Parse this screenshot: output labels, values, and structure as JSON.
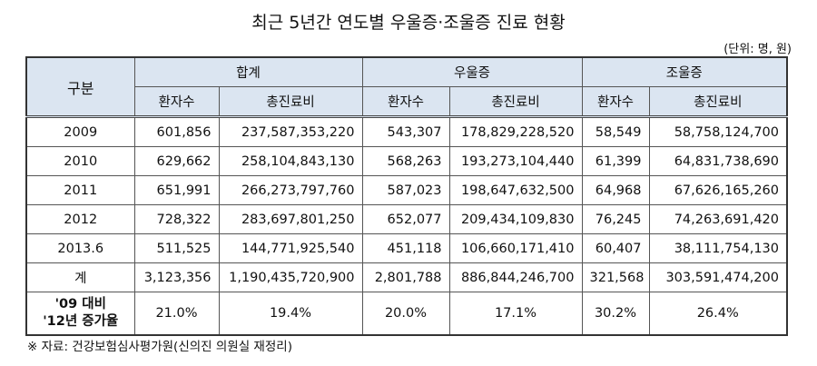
{
  "title": "최근 5년간 연도별 우울증·조울증 진료 현황",
  "unit": "(단위: 명, 원)",
  "table": {
    "row_header": "구분",
    "groups": [
      "합계",
      "우울증",
      "조울증"
    ],
    "subheaders": [
      "환자수",
      "총진료비",
      "환자수",
      "총진료비",
      "환자수",
      "총진료비"
    ],
    "rows": [
      {
        "label": "2009",
        "values": [
          "601,856",
          "237,587,353,220",
          "543,307",
          "178,829,228,520",
          "58,549",
          "58,758,124,700"
        ]
      },
      {
        "label": "2010",
        "values": [
          "629,662",
          "258,104,843,130",
          "568,263",
          "193,273,104,440",
          "61,399",
          "64,831,738,690"
        ]
      },
      {
        "label": "2011",
        "values": [
          "651,991",
          "266,273,797,760",
          "587,023",
          "198,647,632,500",
          "64,968",
          "67,626,165,260"
        ]
      },
      {
        "label": "2012",
        "values": [
          "728,322",
          "283,697,801,250",
          "652,077",
          "209,434,109,830",
          "76,245",
          "74,263,691,420"
        ]
      },
      {
        "label": "2013.6",
        "values": [
          "511,525",
          "144,771,925,540",
          "451,118",
          "106,660,171,410",
          "60,407",
          "38,111,754,130"
        ]
      },
      {
        "label": "계",
        "values": [
          "3,123,356",
          "1,190,435,720,900",
          "2,801,788",
          "886,844,246,700",
          "321,568",
          "303,591,474,200"
        ]
      }
    ],
    "rate_row": {
      "label_line1": "'09 대비",
      "label_line2": "'12년 증가율",
      "values": [
        "21.0%",
        "19.4%",
        "20.0%",
        "17.1%",
        "30.2%",
        "26.4%"
      ]
    }
  },
  "footnote": "※ 자료: 건강보험심사평가원(신의진 의원실 재정리)"
}
